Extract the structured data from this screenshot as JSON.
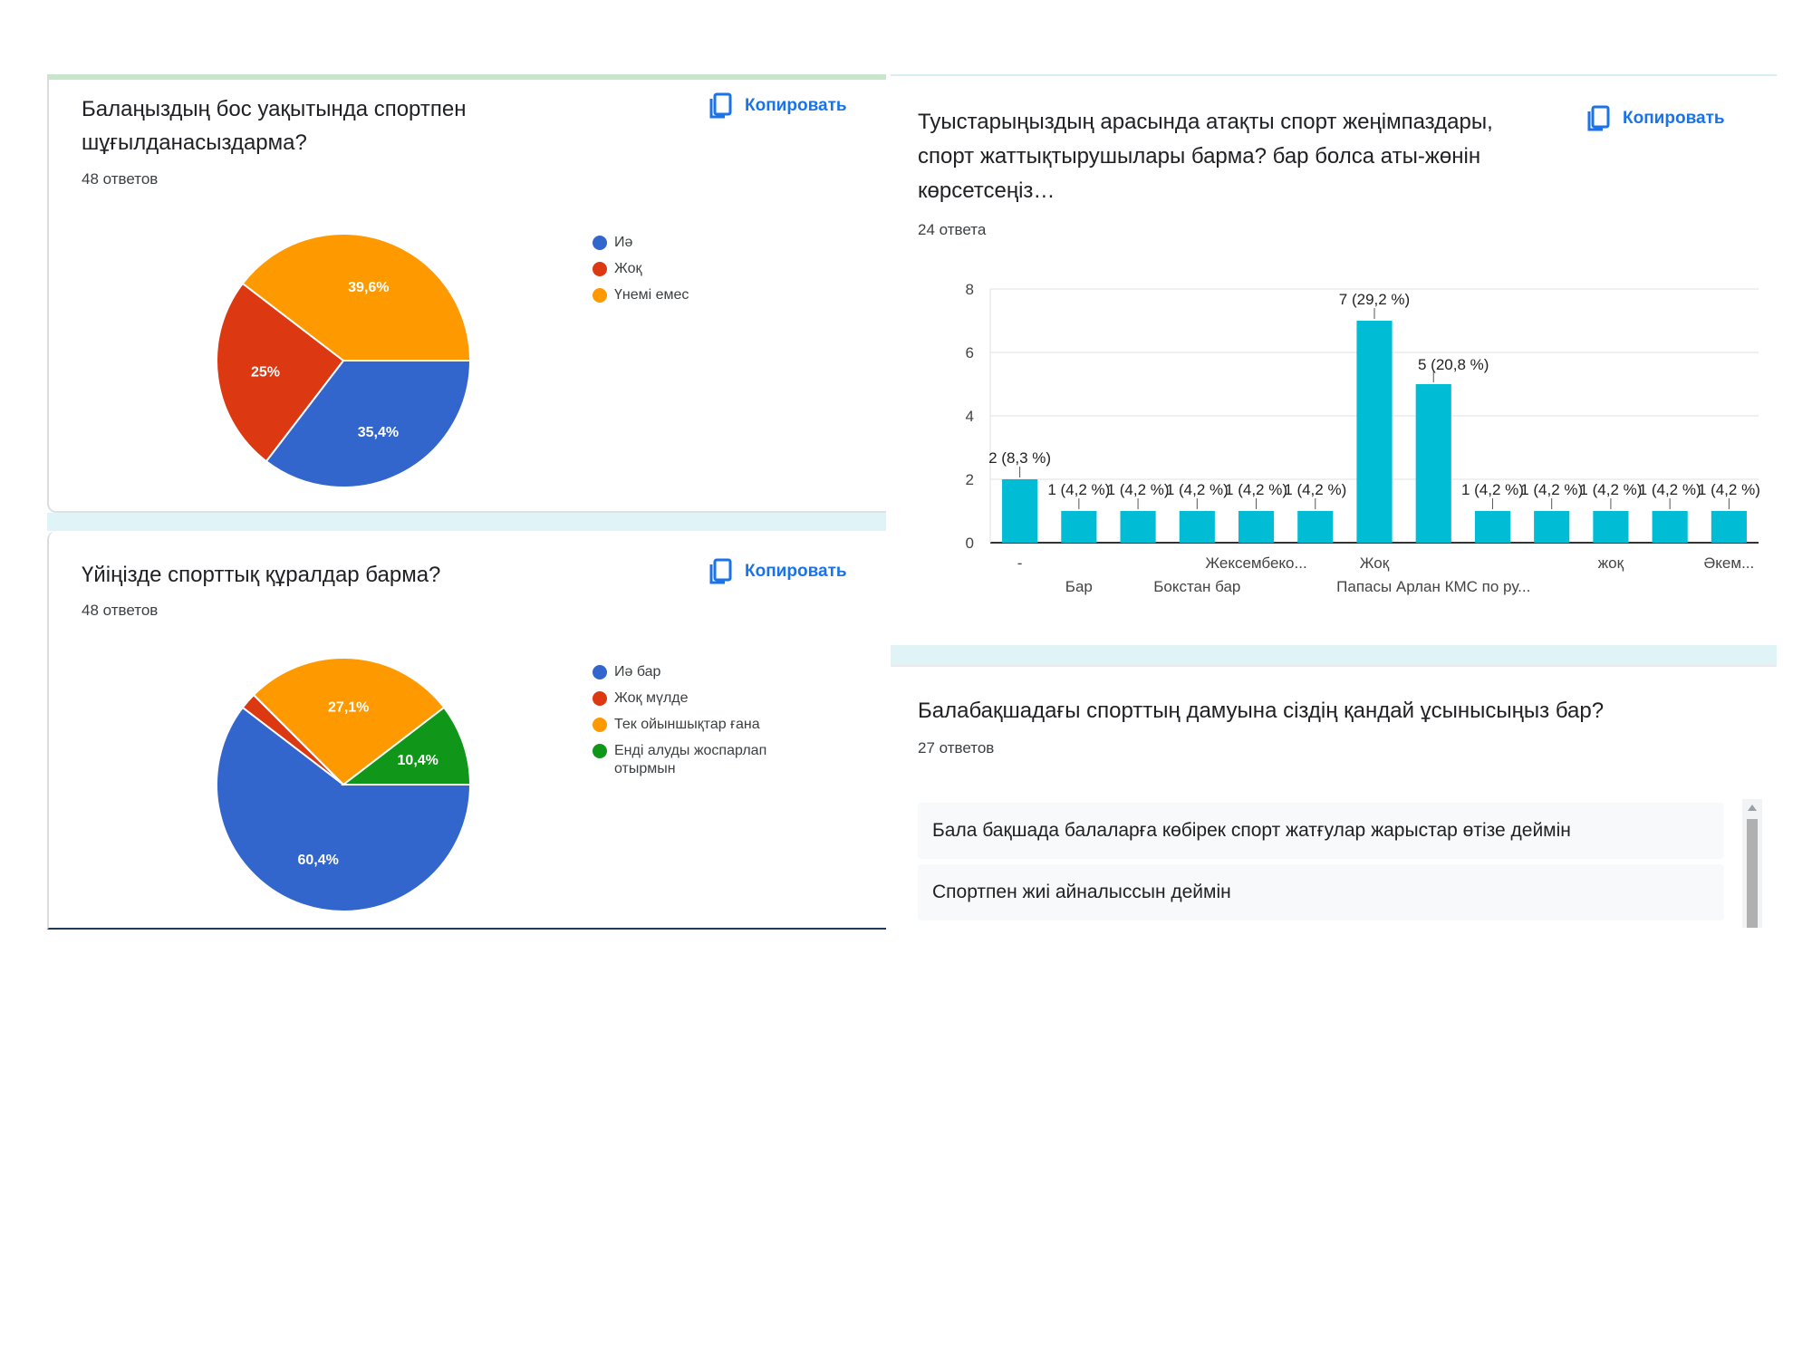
{
  "copy_label": "Копировать",
  "q1": {
    "title_line1": "Балаңыздың бос уақытында спортпен",
    "title_line2": "шұғылданасыздарма?",
    "count": "48 ответов"
  },
  "q2": {
    "title": "Үйіңізде спорттық құралдар барма?",
    "count": "48 ответов"
  },
  "q3": {
    "title_line1": "Туыстарыңыздың арасында атақты спорт жеңімпаздары,",
    "title_line2": "спорт жаттықтырушылары барма? бар болса аты-жөнін",
    "title_line3": "көрсетсеңіз…",
    "count": "24 ответа"
  },
  "q4": {
    "title": "Балабақшадағы спорттың дамуына сіздің қандай ұсынысыңыз бар?",
    "count": "27 ответов",
    "responses": [
      "Бала бақшада балаларға көбірек спорт жатғулар жарыстар өтізе деймін",
      "Спортпен жиі айналыссын деймін"
    ]
  },
  "chart_data": [
    {
      "type": "pie",
      "labels": [
        "Иә",
        "Жоқ",
        "Үнемі емес"
      ],
      "values": [
        35.4,
        25,
        39.6
      ],
      "value_labels": [
        "35,4%",
        "25%",
        "39,6%"
      ],
      "colors": [
        "#3366cc",
        "#dc3912",
        "#ff9900"
      ],
      "legend_position": "right"
    },
    {
      "type": "pie",
      "labels": [
        "Иә бар",
        "Жоқ мүлде",
        "Тек ойыншықтар ғана",
        "Енді алуды жоспарлап отырмын"
      ],
      "values": [
        60.4,
        2.1,
        27.1,
        10.4
      ],
      "value_labels": [
        "60,4%",
        "",
        "27,1%",
        "10,4%"
      ],
      "colors": [
        "#3366cc",
        "#dc3912",
        "#ff9900",
        "#109618"
      ],
      "legend_position": "right"
    },
    {
      "type": "bar",
      "categories": [
        "-",
        "Бар",
        "",
        "Бокстан бар",
        "Жексембеко...",
        "",
        "Жоқ",
        "Папасы Арлан КМС по ру...",
        "",
        "",
        "жоқ",
        "",
        "Әкем..."
      ],
      "values": [
        2,
        1,
        1,
        1,
        1,
        1,
        7,
        5,
        1,
        1,
        1,
        1,
        1
      ],
      "value_labels": [
        "2 (8,3 %)",
        "1 (4,2 %)",
        "1 (4,2 %)",
        "1 (4,2 %)",
        "1 (4,2 %)",
        "1 (4,2 %)",
        "7 (29,2 %)",
        "5 (20,8 %)",
        "1 (4,2 %)",
        "1 (4,2 %)",
        "1 (4,2 %)",
        "1 (4,2 %)",
        "1 (4,2 %)"
      ],
      "ylim": [
        0,
        8
      ],
      "yticks": [
        0,
        2,
        4,
        6,
        8
      ],
      "color": "#00bcd4",
      "grid": true
    }
  ]
}
